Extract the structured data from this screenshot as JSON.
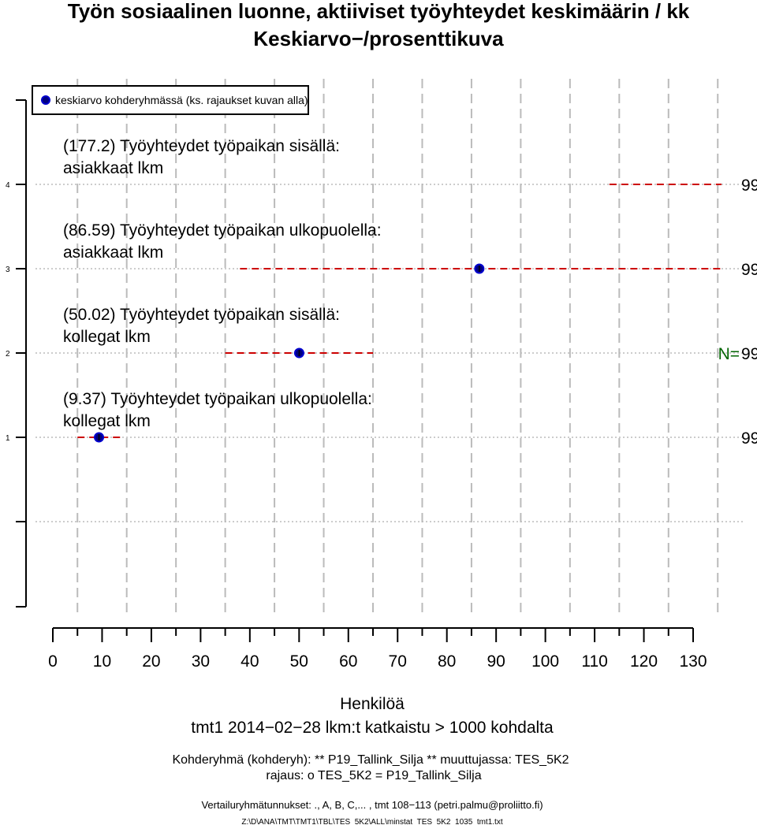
{
  "chart_data": {
    "type": "scatter",
    "title": "Työn sosiaalinen luonne, aktiiviset työyhteydet keskimäärin / kk",
    "subtitle": "Keskiarvo−/prosenttikuva",
    "legend": {
      "label": "keskiarvo kohderyhmässä (ks. rajaukset kuvan alla)",
      "placement": "top-left"
    },
    "xlabel": "Henkilöä",
    "xlim": [
      0,
      130
    ],
    "xticks": [
      0,
      10,
      20,
      30,
      40,
      50,
      60,
      70,
      80,
      90,
      100,
      110,
      120,
      130
    ],
    "yticks": [
      1,
      2,
      3,
      4
    ],
    "series": [
      {
        "row": 4,
        "label_line1": "(177.2) Työyhteydet työpaikan sisällä:",
        "label_line2": "asiakkaat lkm",
        "value": 177.2,
        "range": [
          113,
          136
        ],
        "n": "99"
      },
      {
        "row": 3,
        "label_line1": "(86.59) Työyhteydet työpaikan ulkopuolella:",
        "label_line2": "asiakkaat lkm",
        "value": 86.59,
        "range": [
          38,
          136
        ],
        "n": "99"
      },
      {
        "row": 2,
        "label_line1": "(50.02) Työyhteydet työpaikan sisällä:",
        "label_line2": "kollegat lkm",
        "value": 50.02,
        "range": [
          35,
          65
        ],
        "n": "99"
      },
      {
        "row": 1,
        "label_line1": "(9.37) Työyhteydet työpaikan ulkopuolella:",
        "label_line2": "kollegat lkm",
        "value": 9.37,
        "range": [
          5,
          14
        ],
        "n": "99"
      }
    ],
    "n_prefix": "N=",
    "grid": true,
    "colors": {
      "point_fill": "#000080",
      "point_edge": "#0000cd",
      "range_line": "#cc0000",
      "n_label": "#006400",
      "grid": "#bbbbbb"
    }
  },
  "footer": {
    "line1": "tmt1 2014−02−28 lkm:t katkaistu > 1000 kohdalta",
    "line2": "Kohderyhmä (kohderyh): ** P19_Tallink_Silja ** muuttujassa:  TES_5K2",
    "line3": "rajaus:  o TES_5K2 = P19_Tallink_Silja",
    "line4": "Vertailuryhmätunnukset: ., A, B, C,...  , tmt 108−113 (petri.palmu@proliitto.fi)",
    "line5": "Z:\\D\\ANA\\TMT\\TMT1\\TBL\\TES_5K2\\ALL\\minstat_TES_5K2_1035_tmt1.txt"
  }
}
